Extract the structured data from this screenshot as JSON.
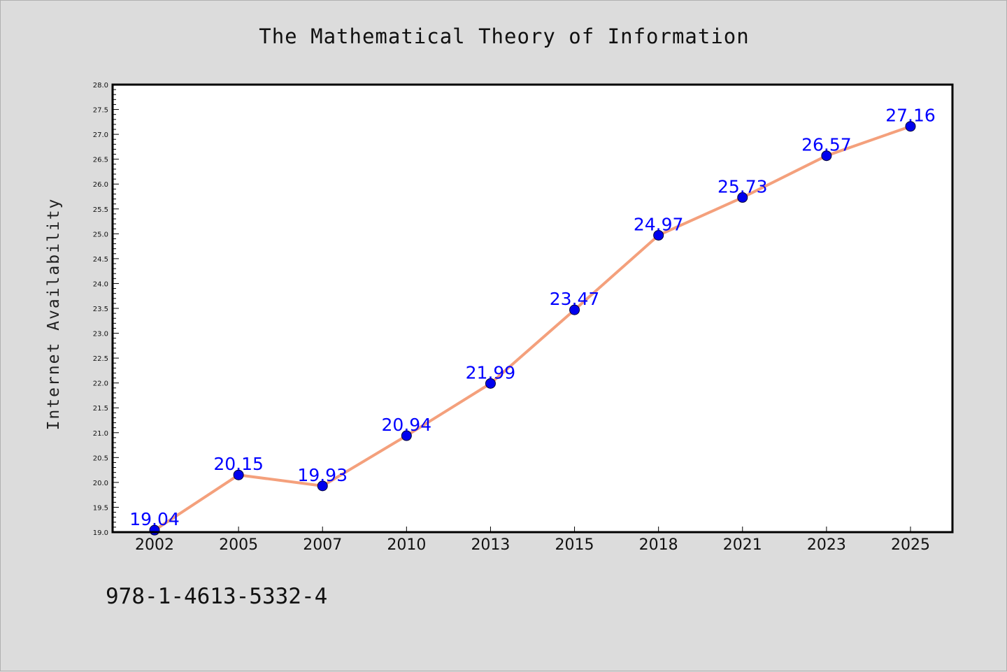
{
  "chart_data": {
    "type": "line",
    "title": "The Mathematical Theory of Information",
    "xlabel": "",
    "ylabel": "Internet Availability",
    "categories": [
      "2002",
      "2005",
      "2007",
      "2010",
      "2013",
      "2015",
      "2018",
      "2021",
      "2023",
      "2025"
    ],
    "series": [
      {
        "values": [
          19.04,
          20.15,
          19.93,
          20.94,
          21.99,
          23.47,
          24.97,
          25.73,
          26.57,
          27.16
        ],
        "data_labels": [
          "19.04",
          "20.15",
          "19.93",
          "20.94",
          "21.99",
          "23.47",
          "24.97",
          "25.73",
          "26.57",
          "27.16"
        ],
        "line_color": "#f4a07c",
        "marker_color": "#0000ee"
      }
    ],
    "ylim": [
      19.0,
      28.0
    ],
    "y_ticks": [
      "19.0",
      "19.5",
      "20.0",
      "20.5",
      "21.0",
      "21.5",
      "22.0",
      "22.5",
      "23.0",
      "23.5",
      "24.0",
      "24.5",
      "25.0",
      "25.5",
      "26.0",
      "26.5",
      "27.0",
      "27.5",
      "28.0"
    ],
    "grid": false,
    "legend": "none",
    "label_color": "#0000ff"
  },
  "footer": {
    "isbn": "978-1-4613-5332-4"
  }
}
